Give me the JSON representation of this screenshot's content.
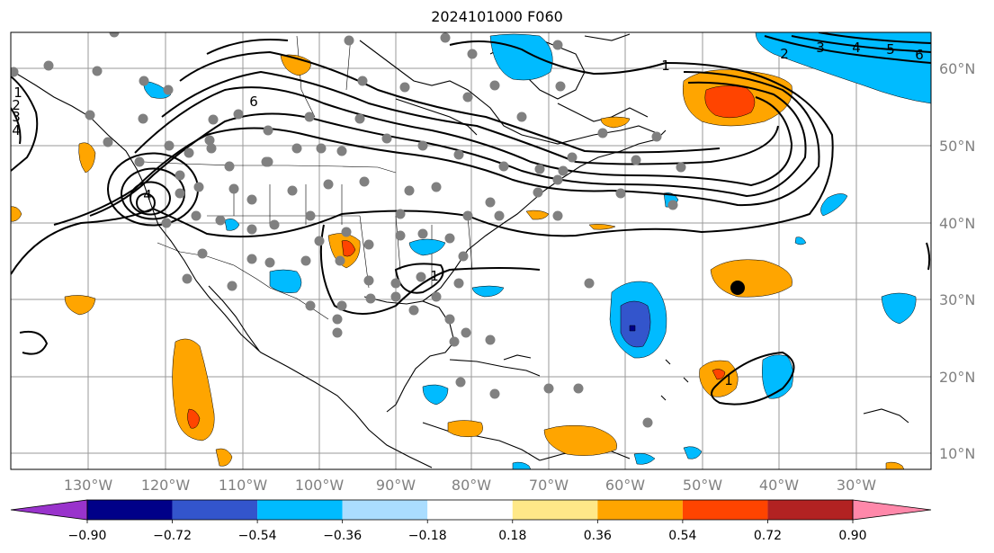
{
  "title": "2024101000 F060",
  "lon_labels": [
    "130°W",
    "120°W",
    "110°W",
    "100°W",
    "90°W",
    "80°W",
    "70°W",
    "60°W",
    "50°W",
    "40°W",
    "30°W"
  ],
  "lat_labels": [
    "60°N",
    "50°N",
    "40°N",
    "30°N",
    "20°N",
    "10°N"
  ],
  "colorbar": {
    "ticks": [
      "−0.90",
      "−0.72",
      "−0.54",
      "−0.36",
      "−0.18",
      "0.18",
      "0.36",
      "0.54",
      "0.72",
      "0.90"
    ],
    "colors": [
      "#9933cc",
      "#000088",
      "#3355cc",
      "#00bbff",
      "#aaddff",
      "#ffffff",
      "#ffe888",
      "#ffa500",
      "#ff4400",
      "#b22222",
      "#ff88aa"
    ]
  },
  "contour_labels": [
    "1",
    "2",
    "3",
    "4",
    "5",
    "6",
    "1",
    "2",
    "3",
    "4",
    "6",
    "4",
    "1",
    "1"
  ],
  "colors": {
    "positive_light": "#ffa500",
    "positive_strong": "#ff4400",
    "negative_light": "#00bbff",
    "negative_strong": "#3355cc",
    "negative_darkest": "#000088",
    "stations": "#808080"
  }
}
